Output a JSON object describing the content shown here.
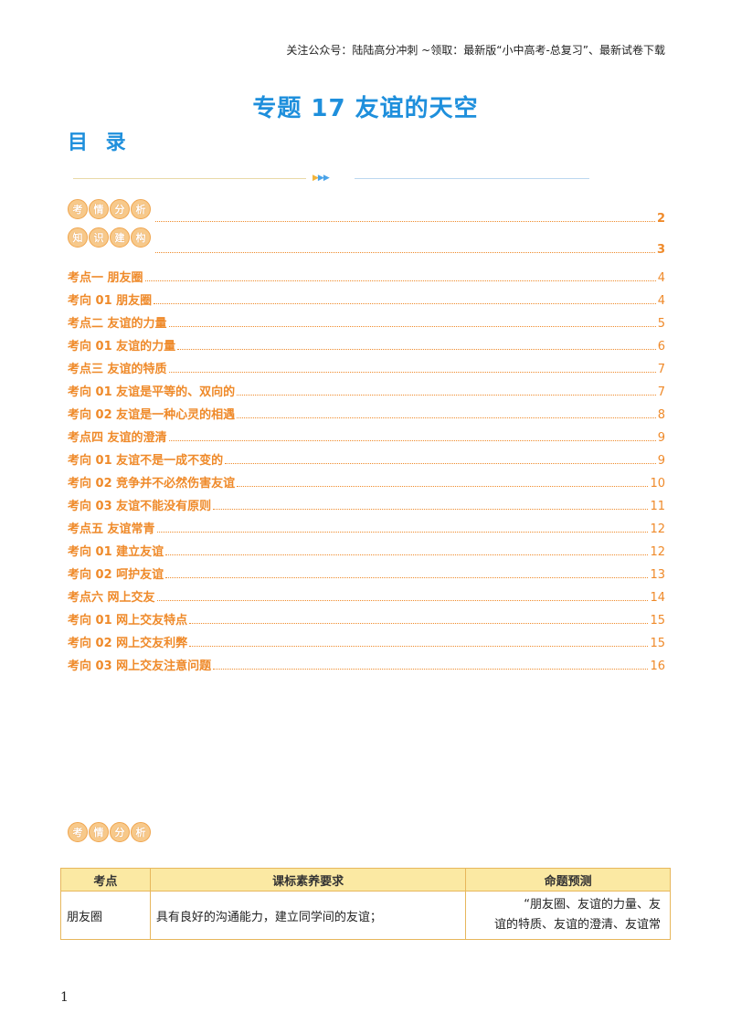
{
  "header_note": "关注公众号：陆陆高分冲刺  ~领取：最新版“小中高考-总复习”、最新试卷下载",
  "title": "专题 17  友谊的天空",
  "toc_heading": "目 录",
  "badges": {
    "analysis": [
      "考",
      "情",
      "分",
      "析"
    ],
    "knowledge": [
      "知",
      "识",
      "建",
      "构"
    ]
  },
  "toc_main": [
    {
      "page": "2"
    },
    {
      "page": "3"
    }
  ],
  "toc": [
    {
      "label": "考点一    朋友圈",
      "page": "4"
    },
    {
      "label": "考向 01  朋友圈",
      "page": "4"
    },
    {
      "label": "考点二    友谊的力量",
      "page": "5"
    },
    {
      "label": "考向 01  友谊的力量",
      "page": "6"
    },
    {
      "label": "考点三    友谊的特质",
      "page": "7"
    },
    {
      "label": "考向 01  友谊是平等的、双向的",
      "page": "7"
    },
    {
      "label": "考向 02  友谊是一种心灵的相遇",
      "page": "8"
    },
    {
      "label": "考点四    友谊的澄清",
      "page": "9"
    },
    {
      "label": "考向 01      友谊不是一成不变的",
      "page": "9"
    },
    {
      "label": "考向 02      竞争并不必然伤害友谊",
      "page": "10"
    },
    {
      "label": "考向 03      友谊不能没有原则",
      "page": "11"
    },
    {
      "label": "考点五    友谊常青",
      "page": "12"
    },
    {
      "label": "考向 01      建立友谊",
      "page": "12"
    },
    {
      "label": "考向 02      呵护友谊",
      "page": "13"
    },
    {
      "label": "考点六    网上交友",
      "page": "14"
    },
    {
      "label": "考向 01      网上交友特点",
      "page": "15"
    },
    {
      "label": "考向 02      网上交友利弊",
      "page": "15"
    },
    {
      "label": "考向 03      网上交友注意问题",
      "page": "16"
    }
  ],
  "table": {
    "headers": [
      "考点",
      "课标素养要求",
      "命题预测"
    ],
    "rows": [
      {
        "topic": "朋友圈",
        "requirement": "具有良好的沟通能力，建立同学间的友谊；",
        "prediction_1": "“朋友圈、友谊的力量、友",
        "prediction_2": "谊的特质、友谊的澄清、友谊常"
      }
    ]
  },
  "page_number": "1"
}
